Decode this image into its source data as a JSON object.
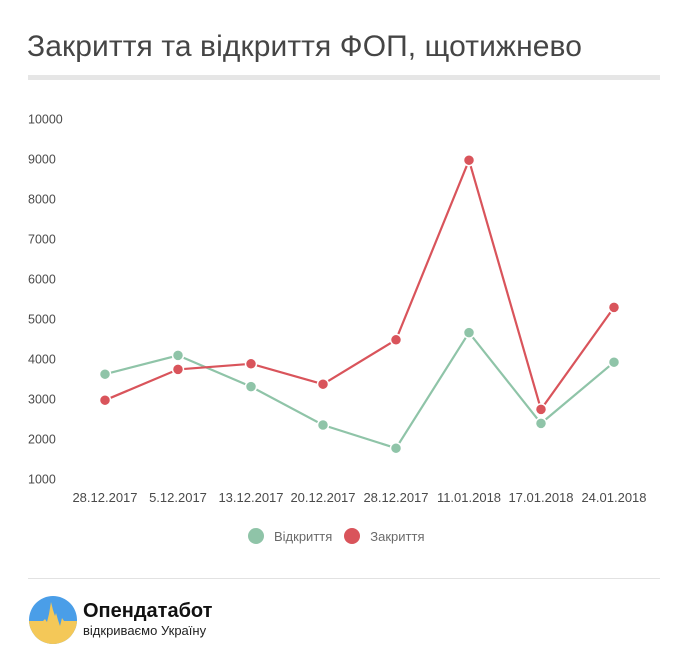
{
  "header": {
    "title": "Закриття та відкриття ФОП, щотижнево"
  },
  "chart_data": {
    "type": "line",
    "title": "Закриття та відкриття ФОП, щотижнево",
    "xlabel": "",
    "ylabel": "",
    "categories": [
      "28.12.2017",
      "5.12.2017",
      "13.12.2017",
      "20.12.2017",
      "28.12.2017",
      "11.01.2018",
      "17.01.2018",
      "24.01.2018"
    ],
    "series": [
      {
        "name": "Відкриття",
        "color": "#8fc4a8",
        "values": [
          3620,
          4090,
          3310,
          2350,
          1770,
          4660,
          2390,
          3920
        ]
      },
      {
        "name": "Закриття",
        "color": "#d9545b",
        "values": [
          2970,
          3740,
          3880,
          3370,
          4480,
          8970,
          2740,
          5290
        ]
      }
    ],
    "yticks": [
      10000,
      9000,
      8000,
      7000,
      6000,
      5000,
      4000,
      3000,
      2000,
      1000
    ],
    "ylim": [
      1000,
      10000
    ],
    "grid": false,
    "legend_position": "bottom"
  },
  "legend": {
    "items": [
      {
        "label": "Відкриття",
        "color": "#8fc4a8"
      },
      {
        "label": "Закриття",
        "color": "#d9545b"
      }
    ]
  },
  "footer": {
    "brand": "Опендатабот",
    "tagline": "відкриваємо Україну",
    "logo_colors": {
      "top": "#4a9ee8",
      "bottom": "#f4c858"
    }
  }
}
